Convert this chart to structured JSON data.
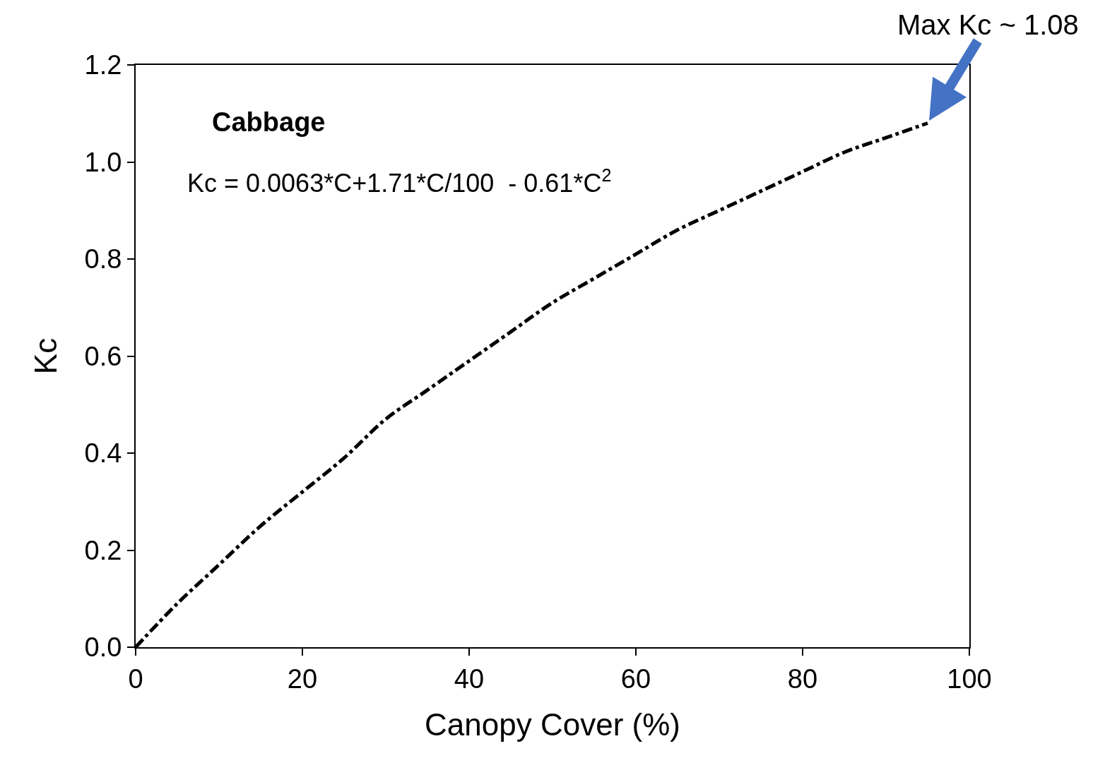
{
  "chart_data": {
    "type": "line",
    "xlabel": "Canopy Cover (%)",
    "ylabel": "Kc",
    "x": [
      0,
      5,
      10,
      15,
      20,
      25,
      30,
      35,
      40,
      45,
      50,
      55,
      60,
      65,
      70,
      75,
      80,
      85,
      90,
      95
    ],
    "series": [
      {
        "color": "#000000",
        "values": [
          0.0,
          0.09,
          0.17,
          0.25,
          0.32,
          0.39,
          0.47,
          0.53,
          0.59,
          0.65,
          0.71,
          0.76,
          0.81,
          0.86,
          0.9,
          0.94,
          0.98,
          1.02,
          1.05,
          1.08
        ]
      }
    ],
    "xlim": [
      0,
      100
    ],
    "xticks": [
      0,
      20,
      40,
      60,
      80,
      100
    ],
    "ylim": [
      0,
      1.2
    ],
    "yticks": [
      {
        "value": 0,
        "label": "0.0"
      },
      {
        "value": 0.2,
        "label": "0.2"
      },
      {
        "value": 0.4,
        "label": "0.4"
      },
      {
        "value": 0.6,
        "label": "0.6"
      },
      {
        "value": 0.8,
        "label": "0.8"
      },
      {
        "value": 1.0,
        "label": "1.0"
      },
      {
        "value": 1.2,
        "label": "1.2"
      }
    ],
    "annotations": [
      "Cabbage",
      "Kc = 0.0063*C+1.71*C/100  - 0.61*C$^{2}$",
      {
        "text": "Max Kc ~ 1.08",
        "x": 95,
        "y": 1.08
      }
    ],
    "legend": false,
    "marker": "none",
    "line_style": "dashed"
  }
}
